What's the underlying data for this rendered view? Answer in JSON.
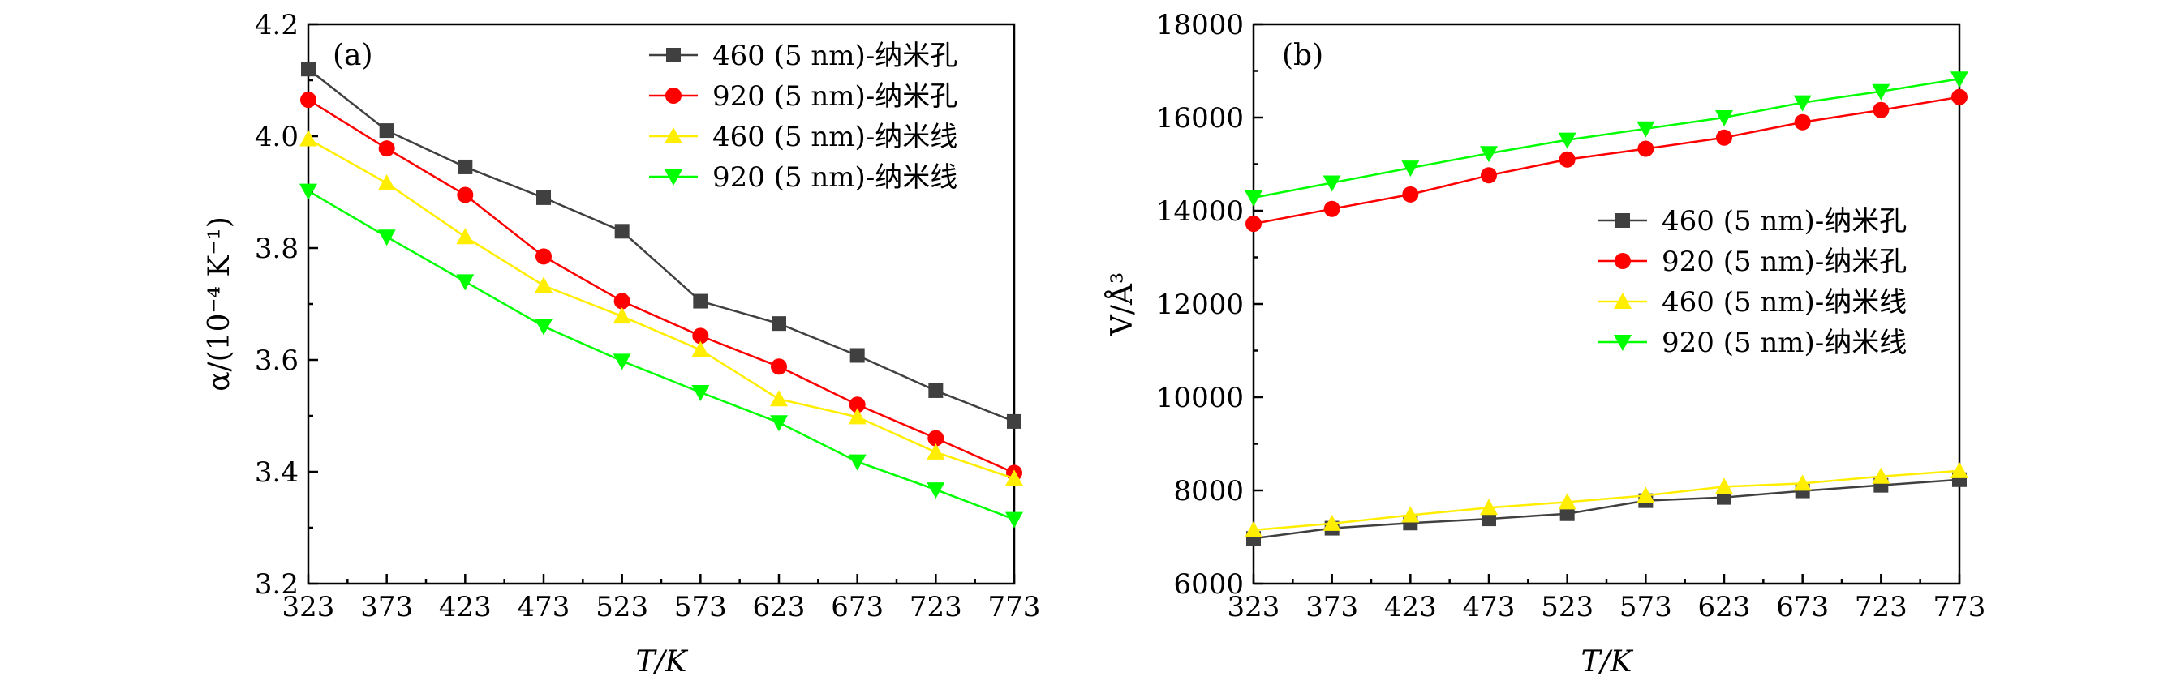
{
  "chart_data": [
    {
      "type": "line",
      "panel_label": "(a)",
      "x": [
        323,
        373,
        423,
        473,
        523,
        573,
        623,
        673,
        723,
        773
      ],
      "xlim": [
        323,
        773
      ],
      "ylim": [
        3.2,
        4.2
      ],
      "xticks": [
        "323",
        "373",
        "423",
        "473",
        "523",
        "573",
        "623",
        "673",
        "723",
        "773"
      ],
      "yticks": [
        "3.2",
        "3.4",
        "3.6",
        "3.8",
        "4.0",
        "4.2"
      ],
      "xlabel": "T/K",
      "ylabel": "α/(10⁻⁴ K⁻¹)",
      "legend_position": "top-right",
      "series": [
        {
          "name": "460 (5 nm)-纳米孔",
          "color": "#404040",
          "marker": "square",
          "values": [
            4.12,
            4.01,
            3.945,
            3.89,
            3.83,
            3.705,
            3.665,
            3.608,
            3.545,
            3.49
          ]
        },
        {
          "name": "920 (5 nm)-纳米孔",
          "color": "#ff0000",
          "marker": "circle",
          "values": [
            4.065,
            3.978,
            3.895,
            3.785,
            3.705,
            3.643,
            3.588,
            3.52,
            3.46,
            3.398
          ]
        },
        {
          "name": "460 (5 nm)-纳米线",
          "color": "#ffee00",
          "marker": "triangle-up",
          "values": [
            3.995,
            3.916,
            3.82,
            3.733,
            3.678,
            3.618,
            3.53,
            3.498,
            3.435,
            3.388
          ]
        },
        {
          "name": "920 (5 nm)-纳米线",
          "color": "#00ff00",
          "marker": "triangle-down",
          "values": [
            3.902,
            3.82,
            3.74,
            3.66,
            3.598,
            3.542,
            3.488,
            3.418,
            3.368,
            3.315
          ]
        }
      ]
    },
    {
      "type": "line",
      "panel_label": "(b)",
      "x": [
        323,
        373,
        423,
        473,
        523,
        573,
        623,
        673,
        723,
        773
      ],
      "xlim": [
        323,
        773
      ],
      "ylim": [
        6000,
        18000
      ],
      "xticks": [
        "323",
        "373",
        "423",
        "473",
        "523",
        "573",
        "623",
        "673",
        "723",
        "773"
      ],
      "yticks": [
        "6000",
        "8000",
        "10000",
        "12000",
        "14000",
        "16000",
        "18000"
      ],
      "xlabel": "T/K",
      "ylabel": "V/Å³",
      "legend_position": "center-right",
      "series": [
        {
          "name": "460 (5 nm)-纳米孔",
          "color": "#404040",
          "marker": "square",
          "values": [
            6970,
            7190,
            7300,
            7390,
            7500,
            7780,
            7850,
            7990,
            8110,
            8230
          ]
        },
        {
          "name": "920 (5 nm)-纳米孔",
          "color": "#ff0000",
          "marker": "circle",
          "values": [
            13720,
            14040,
            14350,
            14760,
            15100,
            15330,
            15570,
            15900,
            16160,
            16440
          ]
        },
        {
          "name": "460 (5 nm)-纳米线",
          "color": "#ffee00",
          "marker": "triangle-up",
          "values": [
            7150,
            7290,
            7470,
            7630,
            7750,
            7890,
            8080,
            8150,
            8300,
            8420
          ]
        },
        {
          "name": "920 (5 nm)-纳米线",
          "color": "#00ff00",
          "marker": "triangle-down",
          "values": [
            14280,
            14600,
            14920,
            15230,
            15520,
            15760,
            16000,
            16320,
            16560,
            16830
          ]
        }
      ]
    }
  ]
}
